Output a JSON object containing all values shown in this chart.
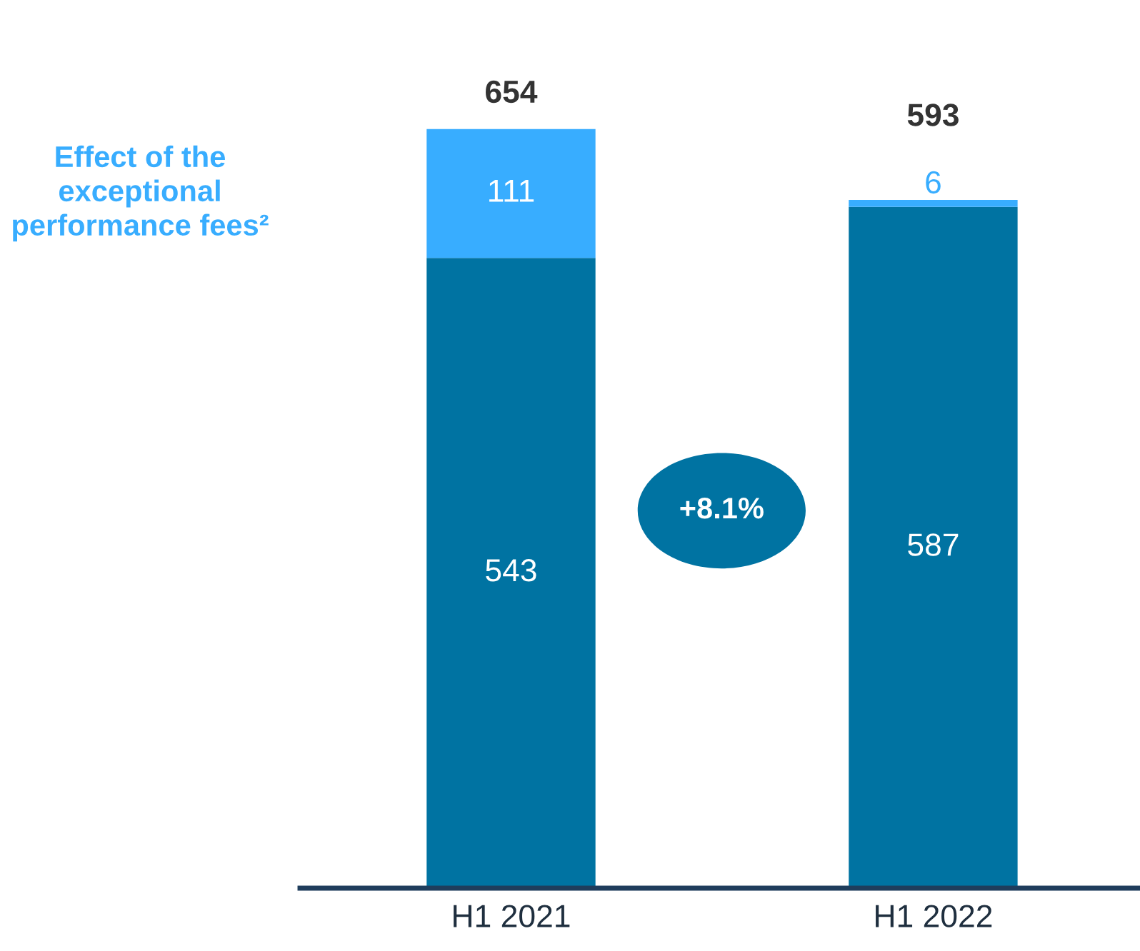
{
  "chart_data": {
    "type": "bar",
    "stacked": true,
    "categories": [
      "H1 2021",
      "H1 2022"
    ],
    "series": [
      {
        "color": "#0073a2",
        "values": [
          543,
          587
        ]
      },
      {
        "name": "Effect of the exceptional performance fees²",
        "color": "#38adff",
        "values": [
          111,
          6
        ]
      }
    ],
    "data_labels": true,
    "totals": [
      "654",
      "593"
    ],
    "annotations": [
      "+8.1%"
    ],
    "grid": false,
    "legend": false
  }
}
